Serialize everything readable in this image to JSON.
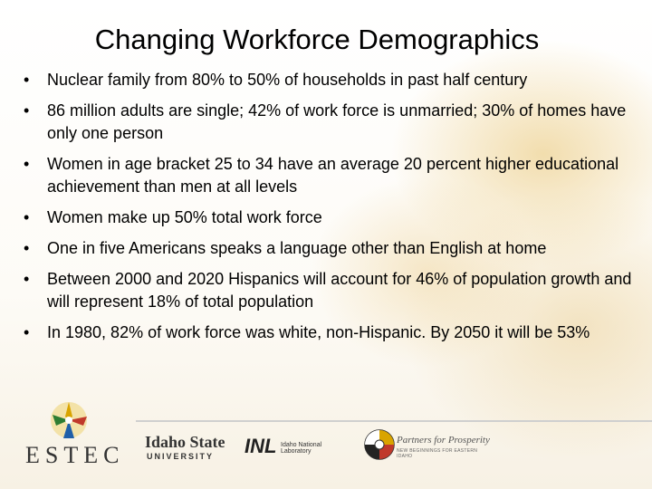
{
  "slide": {
    "title": "Changing Workforce Demographics",
    "bullet_char": "•",
    "bullets": [
      "Nuclear family from 80% to 50% of households in past half century",
      "86 million adults are single; 42% of work force is unmarried; 30% of homes have only one person",
      "Women in age bracket 25 to 34 have an average 20 percent higher educational achievement than men at all levels",
      "Women make up 50% total work force",
      "One in five Americans speaks a language other than English at home",
      "Between 2000 and 2020 Hispanics will account for 46% of population growth and will represent 18% of total population",
      "In 1980, 82% of work force was white, non-Hispanic. By 2050 it will be 53%"
    ]
  },
  "footer": {
    "estec": "ESTEC",
    "isu_line1": "Idaho State",
    "isu_line2": "UNIVERSITY",
    "inl_mark": "INL",
    "inl_text": "Idaho National Laboratory",
    "pfp_title": "Partners for Prosperity",
    "pfp_sub": "NEW BEGINNINGS FOR EASTERN IDAHO"
  },
  "colors": {
    "text": "#000000",
    "accent_warm": "#e8c36e"
  }
}
